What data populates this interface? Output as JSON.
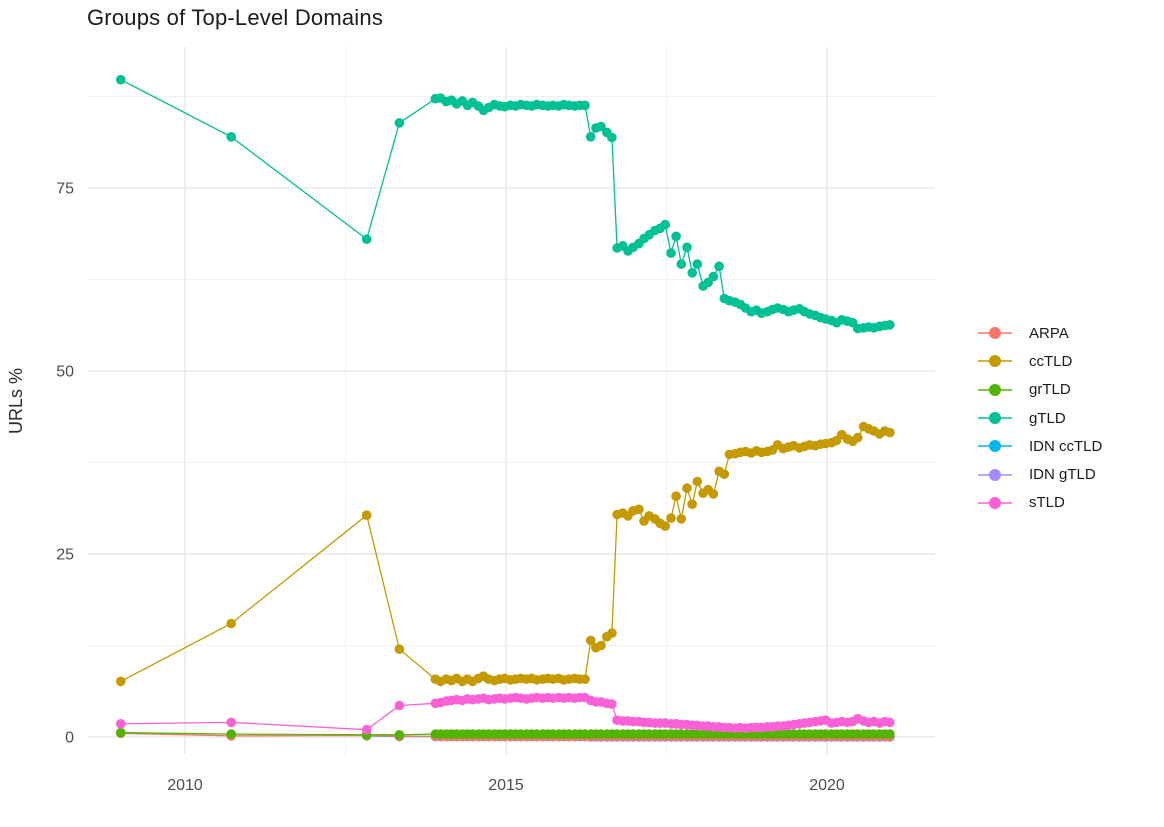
{
  "chart_data": {
    "type": "line",
    "title": "Groups of Top-Level Domains",
    "ylabel": "URLs %",
    "xlabel": "",
    "x_ticks": [
      2010,
      2015,
      2020
    ],
    "x_minor_gridlines": [
      2012.5,
      2017.5
    ],
    "y_ticks": [
      0,
      25,
      50,
      75
    ],
    "y_minor_gridlines": [
      12.5,
      37.5,
      62.5,
      87.5
    ],
    "xlim": [
      2008.5,
      2021.7
    ],
    "ylim": [
      -2.5,
      94.3
    ],
    "grid": "on",
    "legend_position": "right",
    "marker": "point-on-line",
    "x_sparse": [
      2009.0,
      2010.72,
      2012.83,
      2013.34
    ],
    "x_dense": [
      2013.9,
      2013.98,
      2014.07,
      2014.15,
      2014.23,
      2014.32,
      2014.4,
      2014.48,
      2014.57,
      2014.65,
      2014.73,
      2014.82,
      2014.9,
      2014.98,
      2015.07,
      2015.15,
      2015.23,
      2015.32,
      2015.4,
      2015.48,
      2015.57,
      2015.65,
      2015.73,
      2015.82,
      2015.9,
      2015.98,
      2016.07,
      2016.15,
      2016.23,
      2016.32,
      2016.4,
      2016.48,
      2016.57,
      2016.65,
      2016.73,
      2016.82,
      2016.9,
      2016.98,
      2017.07,
      2017.15,
      2017.23,
      2017.32,
      2017.4,
      2017.48,
      2017.57,
      2017.65,
      2017.73,
      2017.82,
      2017.9,
      2017.98,
      2018.07,
      2018.15,
      2018.23,
      2018.32,
      2018.4,
      2018.48,
      2018.57,
      2018.65,
      2018.73,
      2018.82,
      2018.9,
      2018.98,
      2019.07,
      2019.15,
      2019.23,
      2019.32,
      2019.4,
      2019.48,
      2019.57,
      2019.65,
      2019.73,
      2019.82,
      2019.9,
      2019.98,
      2020.07,
      2020.15,
      2020.23,
      2020.32,
      2020.4,
      2020.48,
      2020.57,
      2020.65,
      2020.73,
      2020.82,
      2020.9,
      2020.98
    ],
    "series": [
      {
        "name": "ARPA",
        "color": "#F8766D",
        "sparse": [
          0.5,
          0.15,
          0.2,
          0.1
        ],
        "dense_constant": 0.1
      },
      {
        "name": "ccTLD",
        "color": "#C49A00",
        "sparse": [
          7.6,
          15.5,
          30.3,
          12.0
        ],
        "dense": [
          7.9,
          7.6,
          7.9,
          7.7,
          8.0,
          7.6,
          7.9,
          7.6,
          8.0,
          8.3,
          7.9,
          7.7,
          7.9,
          8.0,
          7.8,
          7.9,
          8.0,
          7.9,
          8.0,
          7.8,
          7.9,
          8.0,
          7.9,
          8.0,
          7.8,
          7.9,
          8.0,
          7.9,
          7.9,
          13.2,
          12.2,
          12.5,
          13.7,
          14.2,
          30.4,
          30.6,
          30.2,
          30.9,
          31.1,
          29.5,
          30.2,
          29.8,
          29.2,
          28.8,
          29.9,
          32.9,
          29.8,
          34.0,
          31.8,
          34.9,
          33.3,
          33.8,
          33.2,
          36.3,
          35.9,
          38.6,
          38.7,
          38.9,
          39.0,
          38.8,
          39.1,
          38.9,
          39.0,
          39.2,
          39.9,
          39.4,
          39.6,
          39.8,
          39.5,
          39.7,
          39.9,
          39.8,
          40.0,
          40.1,
          40.2,
          40.5,
          41.3,
          40.7,
          40.4,
          40.9,
          42.4,
          42.1,
          41.8,
          41.4,
          41.8,
          41.6
        ]
      },
      {
        "name": "grTLD",
        "color": "#53B400",
        "sparse": [
          0.6,
          0.4,
          0.3,
          0.3
        ],
        "dense_constant": 0.4
      },
      {
        "name": "gTLD",
        "color": "#00C094",
        "sparse": [
          89.8,
          82.0,
          68.0,
          83.9
        ],
        "dense": [
          87.2,
          87.3,
          86.8,
          87.0,
          86.5,
          86.9,
          86.3,
          86.7,
          86.2,
          85.6,
          86.0,
          86.4,
          86.2,
          86.1,
          86.3,
          86.2,
          86.4,
          86.3,
          86.2,
          86.4,
          86.3,
          86.2,
          86.3,
          86.2,
          86.4,
          86.3,
          86.2,
          86.3,
          86.3,
          82.0,
          83.2,
          83.4,
          82.6,
          81.9,
          66.8,
          67.1,
          66.4,
          66.9,
          67.4,
          68.1,
          68.6,
          69.2,
          69.5,
          70.0,
          66.1,
          68.4,
          64.6,
          66.9,
          63.4,
          64.6,
          61.6,
          62.1,
          62.9,
          64.3,
          59.9,
          59.6,
          59.4,
          59.1,
          58.6,
          58.1,
          58.3,
          57.9,
          58.1,
          58.4,
          58.6,
          58.4,
          58.1,
          58.3,
          58.5,
          58.1,
          57.8,
          57.6,
          57.3,
          57.1,
          56.9,
          56.6,
          57.0,
          56.8,
          56.6,
          55.8,
          55.9,
          56.0,
          55.9,
          56.1,
          56.2,
          56.3
        ]
      },
      {
        "name": "IDN ccTLD",
        "color": "#00B6EB",
        "sparse": [
          null,
          null,
          0.15,
          0.05
        ],
        "dense_constant": 0.05
      },
      {
        "name": "IDN gTLD",
        "color": "#A58AFF",
        "sparse": [
          null,
          null,
          null,
          null
        ],
        "dense_constant": 0.0,
        "dense_from": 2016.32
      },
      {
        "name": "sTLD",
        "color": "#FB61D7",
        "sparse": [
          1.8,
          2.0,
          1.0,
          4.3
        ],
        "dense": [
          4.6,
          4.7,
          4.9,
          5.0,
          5.1,
          5.0,
          5.2,
          5.1,
          5.2,
          5.3,
          5.1,
          5.2,
          5.3,
          5.2,
          5.3,
          5.4,
          5.3,
          5.2,
          5.3,
          5.4,
          5.3,
          5.4,
          5.3,
          5.4,
          5.3,
          5.4,
          5.3,
          5.4,
          5.4,
          5.0,
          4.8,
          4.8,
          4.6,
          4.5,
          2.3,
          2.2,
          2.2,
          2.1,
          2.1,
          2.0,
          2.0,
          1.9,
          1.9,
          1.9,
          1.8,
          1.8,
          1.7,
          1.7,
          1.6,
          1.6,
          1.5,
          1.5,
          1.4,
          1.4,
          1.3,
          1.3,
          1.2,
          1.3,
          1.2,
          1.3,
          1.3,
          1.3,
          1.4,
          1.4,
          1.5,
          1.5,
          1.6,
          1.7,
          1.8,
          1.9,
          2.0,
          2.1,
          2.2,
          2.3,
          1.9,
          2.0,
          2.1,
          2.0,
          2.1,
          2.5,
          2.2,
          2.0,
          2.1,
          1.9,
          2.1,
          2.0
        ]
      }
    ],
    "draw_order": [
      "IDN gTLD",
      "IDN ccTLD",
      "ARPA",
      "grTLD",
      "ccTLD",
      "gTLD",
      "sTLD"
    ]
  }
}
